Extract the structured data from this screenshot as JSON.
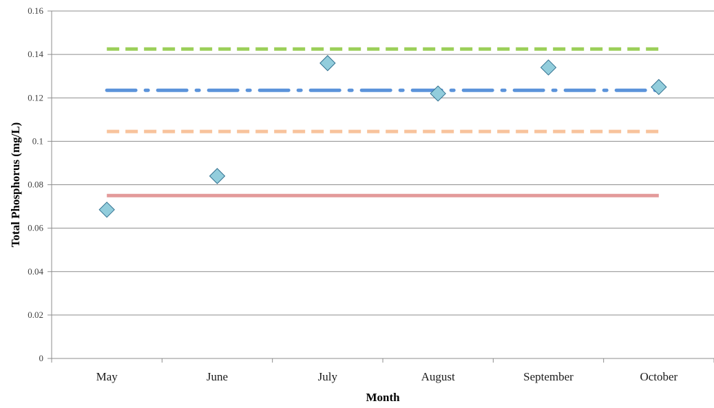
{
  "chart_data": {
    "type": "scatter",
    "title": "",
    "xlabel": "Month",
    "ylabel": "Total Phosphorus (mg/L)",
    "categories": [
      "May",
      "June",
      "July",
      "August",
      "September",
      "October"
    ],
    "ylim": [
      0,
      0.16
    ],
    "yticks": [
      0,
      0.02,
      0.04,
      0.06,
      0.08,
      0.1,
      0.12,
      0.14,
      0.16
    ],
    "ytick_labels": [
      "0",
      "0.02",
      "0.04",
      "0.06",
      "0.08",
      "0.1",
      "0.12",
      "0.14",
      "0.16"
    ],
    "grid": true,
    "series": [
      {
        "type": "scatter",
        "marker": "diamond",
        "color": "#92CDDC",
        "points": [
          {
            "x": "May",
            "y": 0.0685
          },
          {
            "x": "June",
            "y": 0.084
          },
          {
            "x": "July",
            "y": 0.136
          },
          {
            "x": "August",
            "y": 0.122
          },
          {
            "x": "September",
            "y": 0.134
          },
          {
            "x": "October",
            "y": 0.125
          }
        ]
      }
    ],
    "reference_lines": [
      {
        "y": 0.075,
        "style": "solid",
        "color": "#E39A9A"
      },
      {
        "y": 0.1045,
        "style": "dash",
        "color": "#F8C39C"
      },
      {
        "y": 0.1235,
        "style": "dash-dot",
        "color": "#5B93DA"
      },
      {
        "y": 0.1425,
        "style": "dash",
        "color": "#9BCF59"
      }
    ]
  }
}
